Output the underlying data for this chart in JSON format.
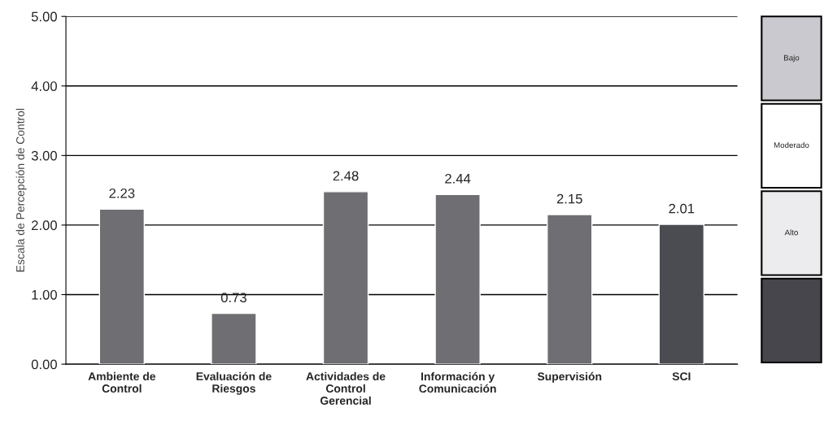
{
  "chart_data": [
    {
      "type": "bar",
      "ylabel": "Escala de Percepción de Control",
      "categories": [
        "Ambiente de\nControl",
        "Evaluación de\nRiesgos",
        "Actividades de\nControl\nGerencial",
        "Información y\nComunicación",
        "Supervisión",
        "SCI"
      ],
      "values": [
        2.23,
        0.73,
        2.48,
        2.44,
        2.15,
        2.01
      ],
      "colors": [
        "#6f6f73",
        "#6f6f73",
        "#6f6f73",
        "#6f6f73",
        "#6f6f73",
        "#4b4b52"
      ],
      "data_labels": true,
      "ylim": [
        0,
        5
      ],
      "yticks": [
        {
          "value": 0,
          "label": "0.00"
        },
        {
          "value": 1,
          "label": "1.00"
        },
        {
          "value": 2,
          "label": "2.00"
        },
        {
          "value": 3,
          "label": "3.00"
        },
        {
          "value": 4,
          "label": "4.00"
        },
        {
          "value": 5,
          "label": "5.00"
        }
      ],
      "grid": "y"
    },
    {
      "type": "other",
      "categories": [
        "Bajo",
        "Moderado",
        "Alto",
        null
      ],
      "colors": [
        "#c9c9cf",
        "#ffffff",
        "#ececee",
        "#46464c"
      ]
    }
  ]
}
